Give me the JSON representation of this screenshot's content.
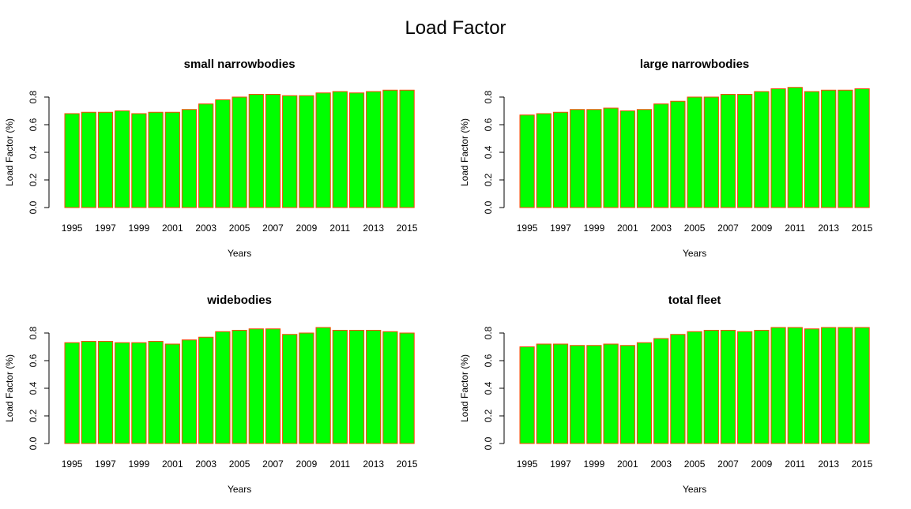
{
  "title": "Load Factor",
  "colors": {
    "bar_fill": "#00ff00",
    "bar_stroke": "#ff4500",
    "axis": "#000000"
  },
  "chart_data": [
    {
      "type": "bar",
      "title": "small narrowbodies",
      "xlabel": "Years",
      "ylabel": "Load Factor (%)",
      "ylim": [
        0,
        0.85
      ],
      "yticks": [
        "0.0",
        "0.2",
        "0.4",
        "0.6",
        "0.8"
      ],
      "categories": [
        "1995",
        "1996",
        "1997",
        "1998",
        "1999",
        "2000",
        "2001",
        "2002",
        "2003",
        "2004",
        "2005",
        "2006",
        "2007",
        "2008",
        "2009",
        "2010",
        "2011",
        "2012",
        "2013",
        "2014",
        "2015"
      ],
      "xtick_labels": [
        "1995",
        "1997",
        "1999",
        "2001",
        "2003",
        "2005",
        "2007",
        "2009",
        "2011",
        "2013",
        "2015"
      ],
      "values": [
        0.68,
        0.69,
        0.69,
        0.7,
        0.68,
        0.69,
        0.69,
        0.71,
        0.75,
        0.78,
        0.8,
        0.82,
        0.82,
        0.81,
        0.81,
        0.83,
        0.84,
        0.83,
        0.84,
        0.85,
        0.85
      ]
    },
    {
      "type": "bar",
      "title": "large narrowbodies",
      "xlabel": "Years",
      "ylabel": "Load Factor (%)",
      "ylim": [
        0,
        0.85
      ],
      "yticks": [
        "0.0",
        "0.2",
        "0.4",
        "0.6",
        "0.8"
      ],
      "categories": [
        "1995",
        "1996",
        "1997",
        "1998",
        "1999",
        "2000",
        "2001",
        "2002",
        "2003",
        "2004",
        "2005",
        "2006",
        "2007",
        "2008",
        "2009",
        "2010",
        "2011",
        "2012",
        "2013",
        "2014",
        "2015"
      ],
      "xtick_labels": [
        "1995",
        "1997",
        "1999",
        "2001",
        "2003",
        "2005",
        "2007",
        "2009",
        "2011",
        "2013",
        "2015"
      ],
      "values": [
        0.67,
        0.68,
        0.69,
        0.71,
        0.71,
        0.72,
        0.7,
        0.71,
        0.75,
        0.77,
        0.8,
        0.8,
        0.82,
        0.82,
        0.84,
        0.86,
        0.87,
        0.84,
        0.85,
        0.85,
        0.86
      ]
    },
    {
      "type": "bar",
      "title": "widebodies",
      "xlabel": "Years",
      "ylabel": "Load Factor (%)",
      "ylim": [
        0,
        0.85
      ],
      "yticks": [
        "0.0",
        "0.2",
        "0.4",
        "0.6",
        "0.8"
      ],
      "categories": [
        "1995",
        "1996",
        "1997",
        "1998",
        "1999",
        "2000",
        "2001",
        "2002",
        "2003",
        "2004",
        "2005",
        "2006",
        "2007",
        "2008",
        "2009",
        "2010",
        "2011",
        "2012",
        "2013",
        "2014",
        "2015"
      ],
      "xtick_labels": [
        "1995",
        "1997",
        "1999",
        "2001",
        "2003",
        "2005",
        "2007",
        "2009",
        "2011",
        "2013",
        "2015"
      ],
      "values": [
        0.73,
        0.74,
        0.74,
        0.73,
        0.73,
        0.74,
        0.72,
        0.75,
        0.77,
        0.81,
        0.82,
        0.83,
        0.83,
        0.79,
        0.8,
        0.84,
        0.82,
        0.82,
        0.82,
        0.81,
        0.8
      ]
    },
    {
      "type": "bar",
      "title": "total fleet",
      "xlabel": "Years",
      "ylabel": "Load Factor (%)",
      "ylim": [
        0,
        0.85
      ],
      "yticks": [
        "0.0",
        "0.2",
        "0.4",
        "0.6",
        "0.8"
      ],
      "categories": [
        "1995",
        "1996",
        "1997",
        "1998",
        "1999",
        "2000",
        "2001",
        "2002",
        "2003",
        "2004",
        "2005",
        "2006",
        "2007",
        "2008",
        "2009",
        "2010",
        "2011",
        "2012",
        "2013",
        "2014",
        "2015"
      ],
      "xtick_labels": [
        "1995",
        "1997",
        "1999",
        "2001",
        "2003",
        "2005",
        "2007",
        "2009",
        "2011",
        "2013",
        "2015"
      ],
      "values": [
        0.7,
        0.72,
        0.72,
        0.71,
        0.71,
        0.72,
        0.71,
        0.73,
        0.76,
        0.79,
        0.81,
        0.82,
        0.82,
        0.81,
        0.82,
        0.84,
        0.84,
        0.83,
        0.84,
        0.84,
        0.84
      ]
    }
  ]
}
